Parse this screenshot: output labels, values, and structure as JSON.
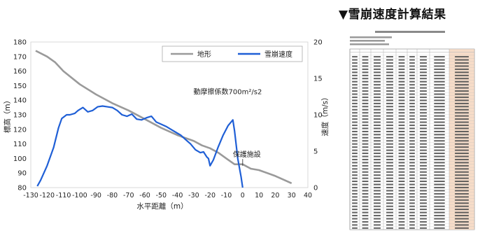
{
  "right_title": "▼雪崩速度計算結果",
  "chart_data": {
    "type": "line",
    "xlabel": "水平距離（m）",
    "ylabel_left": "標高（m）",
    "ylabel_right": "速度（m/s）",
    "xlim": [
      -130,
      40
    ],
    "ylim_left": [
      80,
      180
    ],
    "ylim_right": [
      0,
      20
    ],
    "x_ticks": [
      -130,
      -120,
      -110,
      -100,
      -90,
      -80,
      -70,
      -60,
      -50,
      -40,
      -30,
      -20,
      -10,
      0,
      10,
      20,
      30,
      40
    ],
    "y_left_ticks": [
      80,
      90,
      100,
      110,
      120,
      130,
      140,
      150,
      160,
      170,
      180
    ],
    "y_right_ticks": [
      0,
      5,
      10,
      15,
      20
    ],
    "annotations": [
      {
        "text": "動摩擦係数700m²/s2",
        "x": -13,
        "y_right": 13.2
      },
      {
        "text": "保護施設",
        "x": 0,
        "y_left": 103
      }
    ],
    "series": [
      {
        "name": "地形",
        "axis": "left",
        "color": "#9a9a9a",
        "x": [
          -127,
          -120,
          -115,
          -110,
          -100,
          -90,
          -80,
          -70,
          -60,
          -50,
          -40,
          -30,
          -25,
          -20,
          -15,
          -10,
          -5,
          0,
          5,
          10,
          20,
          30
        ],
        "y": [
          174,
          170,
          166,
          160,
          151,
          144,
          138,
          133,
          127,
          121,
          116,
          112,
          109,
          107,
          104,
          100,
          96,
          96,
          93,
          92,
          88,
          83
        ]
      },
      {
        "name": "雪崩速度",
        "axis": "right",
        "color": "#1f5fd6",
        "x": [
          -126,
          -124,
          -120,
          -116,
          -113,
          -111,
          -108,
          -106,
          -103,
          -101,
          -98,
          -95,
          -92,
          -89,
          -86,
          -83,
          -80,
          -77,
          -74,
          -71,
          -68,
          -65,
          -62,
          -59,
          -56,
          -53,
          -50,
          -47,
          -44,
          -41,
          -38,
          -35,
          -32,
          -29,
          -26,
          -24,
          -22,
          -21,
          -20,
          -18,
          -15,
          -12,
          -9,
          -6,
          -5,
          -3,
          -1,
          0
        ],
        "y": [
          0.2,
          1.0,
          3.0,
          5.5,
          8.2,
          9.5,
          10.0,
          10.0,
          10.2,
          10.6,
          11.0,
          10.4,
          10.6,
          11.1,
          11.2,
          11.1,
          11.0,
          10.6,
          10.0,
          9.8,
          10.1,
          9.4,
          9.3,
          9.6,
          9.8,
          9.0,
          8.7,
          8.4,
          8.0,
          7.6,
          7.2,
          6.6,
          6.0,
          5.2,
          4.8,
          4.9,
          4.2,
          4.0,
          3.0,
          3.8,
          5.6,
          7.2,
          8.5,
          9.3,
          7.8,
          4.0,
          1.5,
          0.0
        ]
      }
    ]
  }
}
